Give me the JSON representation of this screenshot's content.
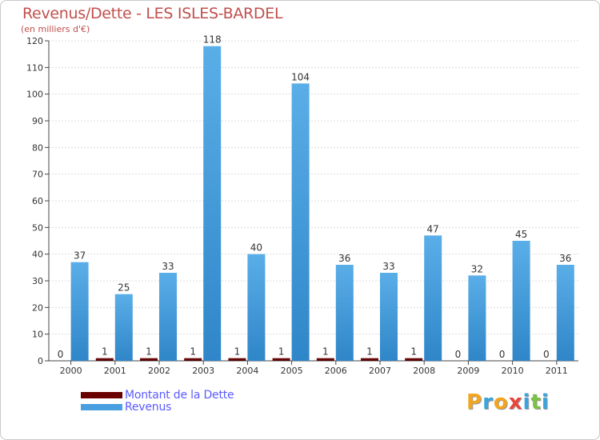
{
  "chart_data": {
    "type": "bar",
    "title": "Revenus/Dette - LES ISLES-BARDEL",
    "subtitle": "(en milliers d'€)",
    "xlabel": "",
    "ylabel": "",
    "categories": [
      "2000",
      "2001",
      "2002",
      "2003",
      "2004",
      "2005",
      "2006",
      "2007",
      "2008",
      "2009",
      "2010",
      "2011"
    ],
    "series": [
      {
        "name": "Montant de la Dette",
        "color": "#6b0000",
        "values": [
          0,
          1,
          1,
          1,
          1,
          1,
          1,
          1,
          1,
          0,
          0,
          0
        ]
      },
      {
        "name": "Revenus",
        "color": "#4a9fe0",
        "values": [
          37,
          25,
          33,
          118,
          40,
          104,
          36,
          33,
          47,
          32,
          45,
          36
        ]
      }
    ],
    "ylim": [
      0,
      120
    ],
    "yticks": [
      0,
      10,
      20,
      30,
      40,
      50,
      60,
      70,
      80,
      90,
      100,
      110,
      120
    ],
    "grid": true,
    "legend": "bottom-left"
  },
  "brand": {
    "letters": [
      "P",
      "r",
      "o",
      "x",
      "i",
      "t",
      "i"
    ],
    "colors": [
      "#f2a51e",
      "#3aa4dc",
      "#f2a51e",
      "#e8473c",
      "#3aa4dc",
      "#7cc242",
      "#3aa4dc"
    ]
  }
}
